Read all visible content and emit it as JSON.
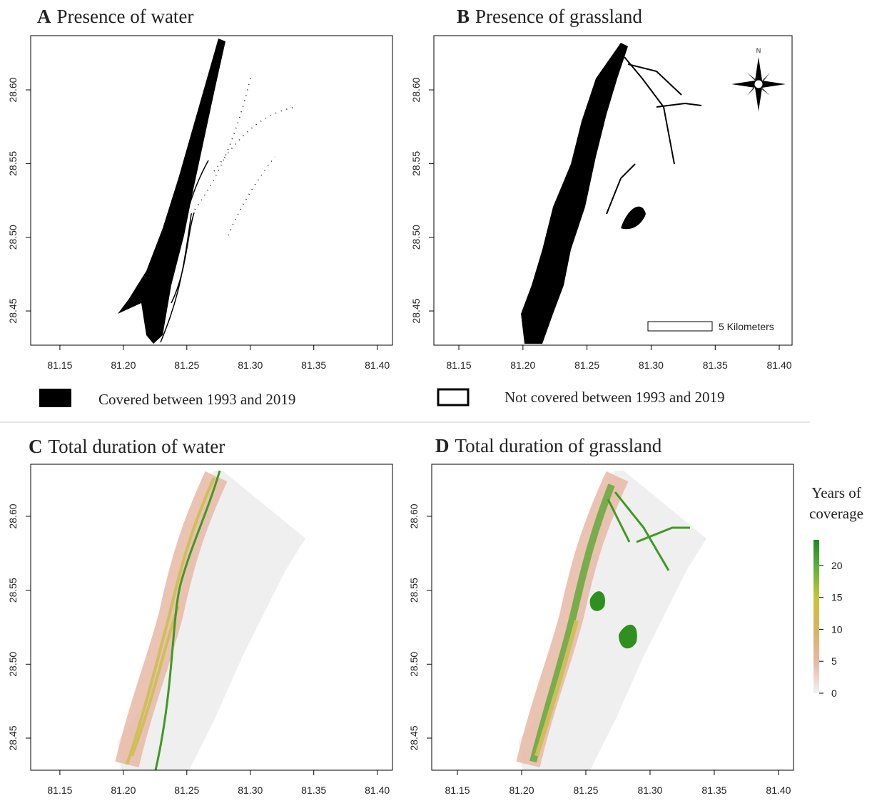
{
  "panels": [
    {
      "letter": "A",
      "title": "Presence of water",
      "xlim": [
        81.127,
        81.412
      ],
      "ylim": [
        28.4268,
        28.6368
      ],
      "xticks": [
        81.15,
        {
          "value": 81.2,
          "label": "81.20"
        },
        81.25,
        {
          "value": 81.3,
          "label": "81.30"
        },
        81.35,
        {
          "value": 81.4,
          "label": "81.40"
        }
      ],
      "yticks": [
        28.45,
        {
          "value": 28.5,
          "label": "28.50"
        },
        28.55,
        {
          "value": 28.6,
          "label": "28.60"
        }
      ]
    },
    {
      "letter": "B",
      "title": "Presence of grassland",
      "xlim": [
        81.1305,
        81.41
      ],
      "ylim": [
        28.4268,
        28.6368
      ],
      "xticks": [
        81.15,
        {
          "value": 81.2,
          "label": "81.20"
        },
        81.25,
        {
          "value": 81.3,
          "label": "81.30"
        },
        81.35,
        {
          "value": 81.4,
          "label": "81.40"
        }
      ],
      "yticks": [
        28.45,
        {
          "value": 28.5,
          "label": "28.50"
        },
        28.55,
        {
          "value": 28.6,
          "label": "28.60"
        }
      ]
    },
    {
      "letter": "C",
      "title": "Total duration of water",
      "xlim": [
        81.127,
        81.412
      ],
      "ylim": [
        28.4283,
        28.6352
      ],
      "xticks": [
        81.15,
        {
          "value": 81.2,
          "label": "81.20"
        },
        81.25,
        {
          "value": 81.3,
          "label": "81.30"
        },
        81.35,
        {
          "value": 81.4,
          "label": "81.40"
        }
      ],
      "yticks": [
        28.45,
        {
          "value": 28.5,
          "label": "28.50"
        },
        28.55,
        {
          "value": 28.6,
          "label": "28.60"
        }
      ]
    },
    {
      "letter": "D",
      "title": "Total duration of grassland",
      "xlim": [
        81.13,
        81.4117
      ],
      "ylim": [
        28.4283,
        28.6352
      ],
      "xticks": [
        81.15,
        {
          "value": 81.2,
          "label": "81.20"
        },
        81.25,
        {
          "value": 81.3,
          "label": "81.30"
        },
        81.35,
        {
          "value": 81.4,
          "label": "81.40"
        }
      ],
      "yticks": [
        28.45,
        {
          "value": 28.5,
          "label": "28.50"
        },
        28.55,
        {
          "value": 28.6,
          "label": "28.60"
        }
      ]
    }
  ],
  "legend": [
    "Covered between 1993 and 2019",
    "Not covered between 1993 and 2019"
  ],
  "compass": "N",
  "scale_bar": "5 Kilometers",
  "colorbar": {
    "title": [
      "Years of",
      "coverage"
    ],
    "lim": [
      0,
      24
    ],
    "ticks": [
      0,
      5,
      10,
      15,
      20
    ]
  }
}
